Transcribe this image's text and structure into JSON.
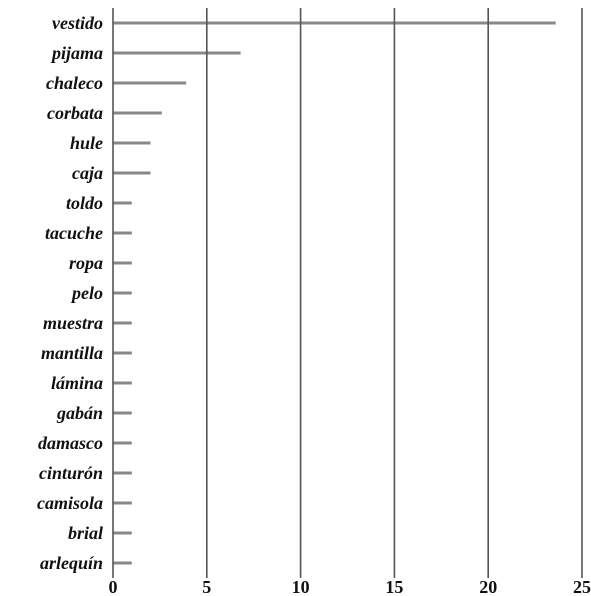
{
  "chart_data": {
    "type": "bar",
    "orientation": "horizontal",
    "title": "",
    "xlabel": "",
    "ylabel": "",
    "xlim": [
      0,
      25
    ],
    "xticks": [
      0,
      5,
      10,
      15,
      20,
      25
    ],
    "grid": "vertical",
    "legend": "none",
    "bar_color": "#888888",
    "categories": [
      "vestido",
      "pijama",
      "chaleco",
      "corbata",
      "hule",
      "caja",
      "toldo",
      "tacuche",
      "ropa",
      "pelo",
      "muestra",
      "mantilla",
      "lámina",
      "gabán",
      "damasco",
      "cinturón",
      "camisola",
      "brial",
      "arlequín"
    ],
    "values": [
      23.6,
      6.8,
      3.9,
      2.6,
      2.0,
      2.0,
      1.0,
      1.0,
      1.0,
      1.0,
      1.0,
      1.0,
      1.0,
      1.0,
      1.0,
      1.0,
      1.0,
      1.0,
      1.0
    ]
  }
}
